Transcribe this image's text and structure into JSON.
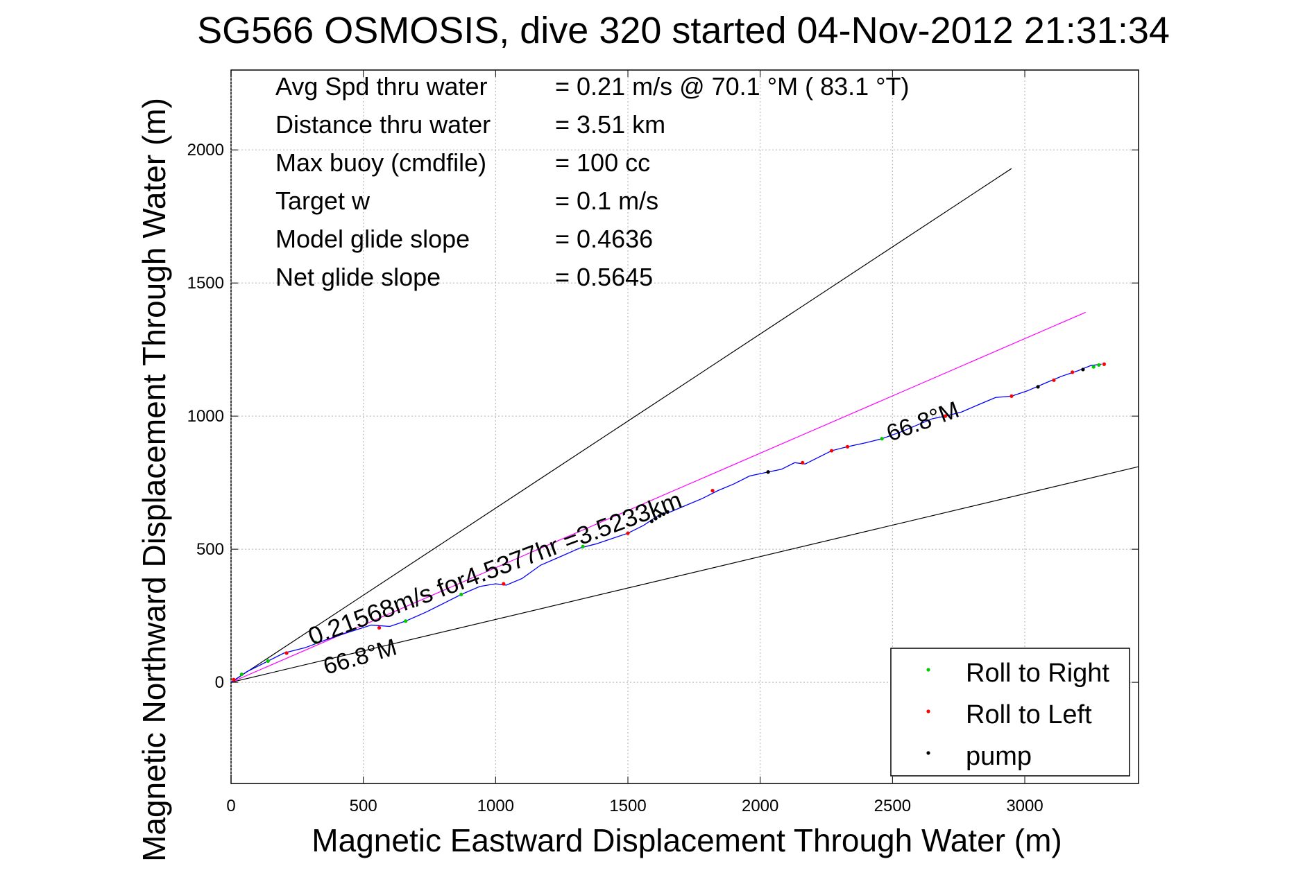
{
  "chart_data": {
    "type": "line",
    "title": "SG566 OSMOSIS, dive 320 started 04-Nov-2012 21:31:34",
    "xlabel": "Magnetic Eastward Displacement Through Water (m)",
    "ylabel": "Magnetic Northward Displacement Through Water (m)",
    "xlim": [
      0,
      3430
    ],
    "ylim": [
      -380,
      2300
    ],
    "grid": true,
    "xticks": [
      0,
      500,
      1000,
      1500,
      2000,
      2500,
      3000
    ],
    "yticks": [
      0,
      500,
      1000,
      1500,
      2000
    ],
    "info_lines": [
      {
        "label": "Avg Spd thru water",
        "value": "=  0.21 m/s @  70.1 °M ( 83.1 °T)"
      },
      {
        "label": "Distance thru water",
        "value": "=  3.51 km"
      },
      {
        "label": "Max buoy (cmdfile)",
        "value": "= 100 cc"
      },
      {
        "label": "Target w",
        "value": "= 0.1 m/s"
      },
      {
        "label": "Model glide slope",
        "value": "= 0.4636"
      },
      {
        "label": "Net glide slope",
        "value": "= 0.5645"
      }
    ],
    "annotations": {
      "course_speed": "0.21568m/s for4.5377hr =3.5233km",
      "heading_start": "66.8°M",
      "heading_end": "66.8°M"
    },
    "reference_lines": [
      {
        "x": [
          0,
          2950
        ],
        "y": [
          0,
          1930
        ],
        "color": "#000000"
      },
      {
        "x": [
          0,
          3430
        ],
        "y": [
          0,
          810
        ],
        "color": "#000000"
      },
      {
        "x": [
          0,
          3230
        ],
        "y": [
          0,
          1390
        ],
        "color": "#ff00ff"
      }
    ],
    "track": {
      "color": "#0000ff",
      "x": [
        0,
        60,
        130,
        200,
        280,
        360,
        450,
        530,
        600,
        660,
        740,
        810,
        870,
        940,
        1000,
        1040,
        1100,
        1170,
        1240,
        1320,
        1380,
        1440,
        1500,
        1560,
        1620,
        1660,
        1720,
        1780,
        1840,
        1900,
        1960,
        2030,
        2080,
        2130,
        2170,
        2210,
        2270,
        2330,
        2400,
        2460,
        2530,
        2590,
        2650,
        2700,
        2760,
        2830,
        2890,
        2950,
        3010,
        3080,
        3140,
        3200,
        3250,
        3290
      ],
      "y": [
        0,
        40,
        75,
        110,
        130,
        160,
        190,
        215,
        210,
        230,
        265,
        300,
        330,
        360,
        370,
        365,
        390,
        440,
        470,
        505,
        520,
        540,
        560,
        590,
        630,
        640,
        665,
        690,
        720,
        745,
        775,
        790,
        800,
        825,
        820,
        840,
        870,
        885,
        900,
        915,
        940,
        965,
        990,
        1000,
        1015,
        1045,
        1070,
        1075,
        1095,
        1125,
        1150,
        1170,
        1190,
        1195
      ]
    },
    "legend": {
      "placement": "bottom-right",
      "entries": [
        {
          "name": "Roll to Right",
          "color": "#00cc00"
        },
        {
          "name": "Roll to Left",
          "color": "#ff0000"
        },
        {
          "name": "pump",
          "color": "#000000"
        }
      ]
    },
    "markers": {
      "roll_right": {
        "color": "#00cc00",
        "x": [
          40,
          140,
          320,
          660,
          870,
          1330,
          2460,
          3260,
          3280
        ],
        "y": [
          30,
          80,
          150,
          230,
          330,
          510,
          915,
          1185,
          1192
        ]
      },
      "roll_left": {
        "color": "#ff0000",
        "x": [
          10,
          210,
          560,
          1030,
          1500,
          1820,
          2160,
          2270,
          2330,
          2700,
          2950,
          3110,
          3180,
          3300
        ],
        "y": [
          10,
          110,
          205,
          370,
          560,
          720,
          825,
          870,
          885,
          1000,
          1075,
          1135,
          1165,
          1195
        ]
      },
      "pump": {
        "color": "#000000",
        "x": [
          1590,
          1605,
          1620,
          1635,
          1650,
          2030,
          3050,
          3220
        ],
        "y": [
          605,
          615,
          625,
          632,
          640,
          790,
          1110,
          1175
        ]
      }
    }
  }
}
